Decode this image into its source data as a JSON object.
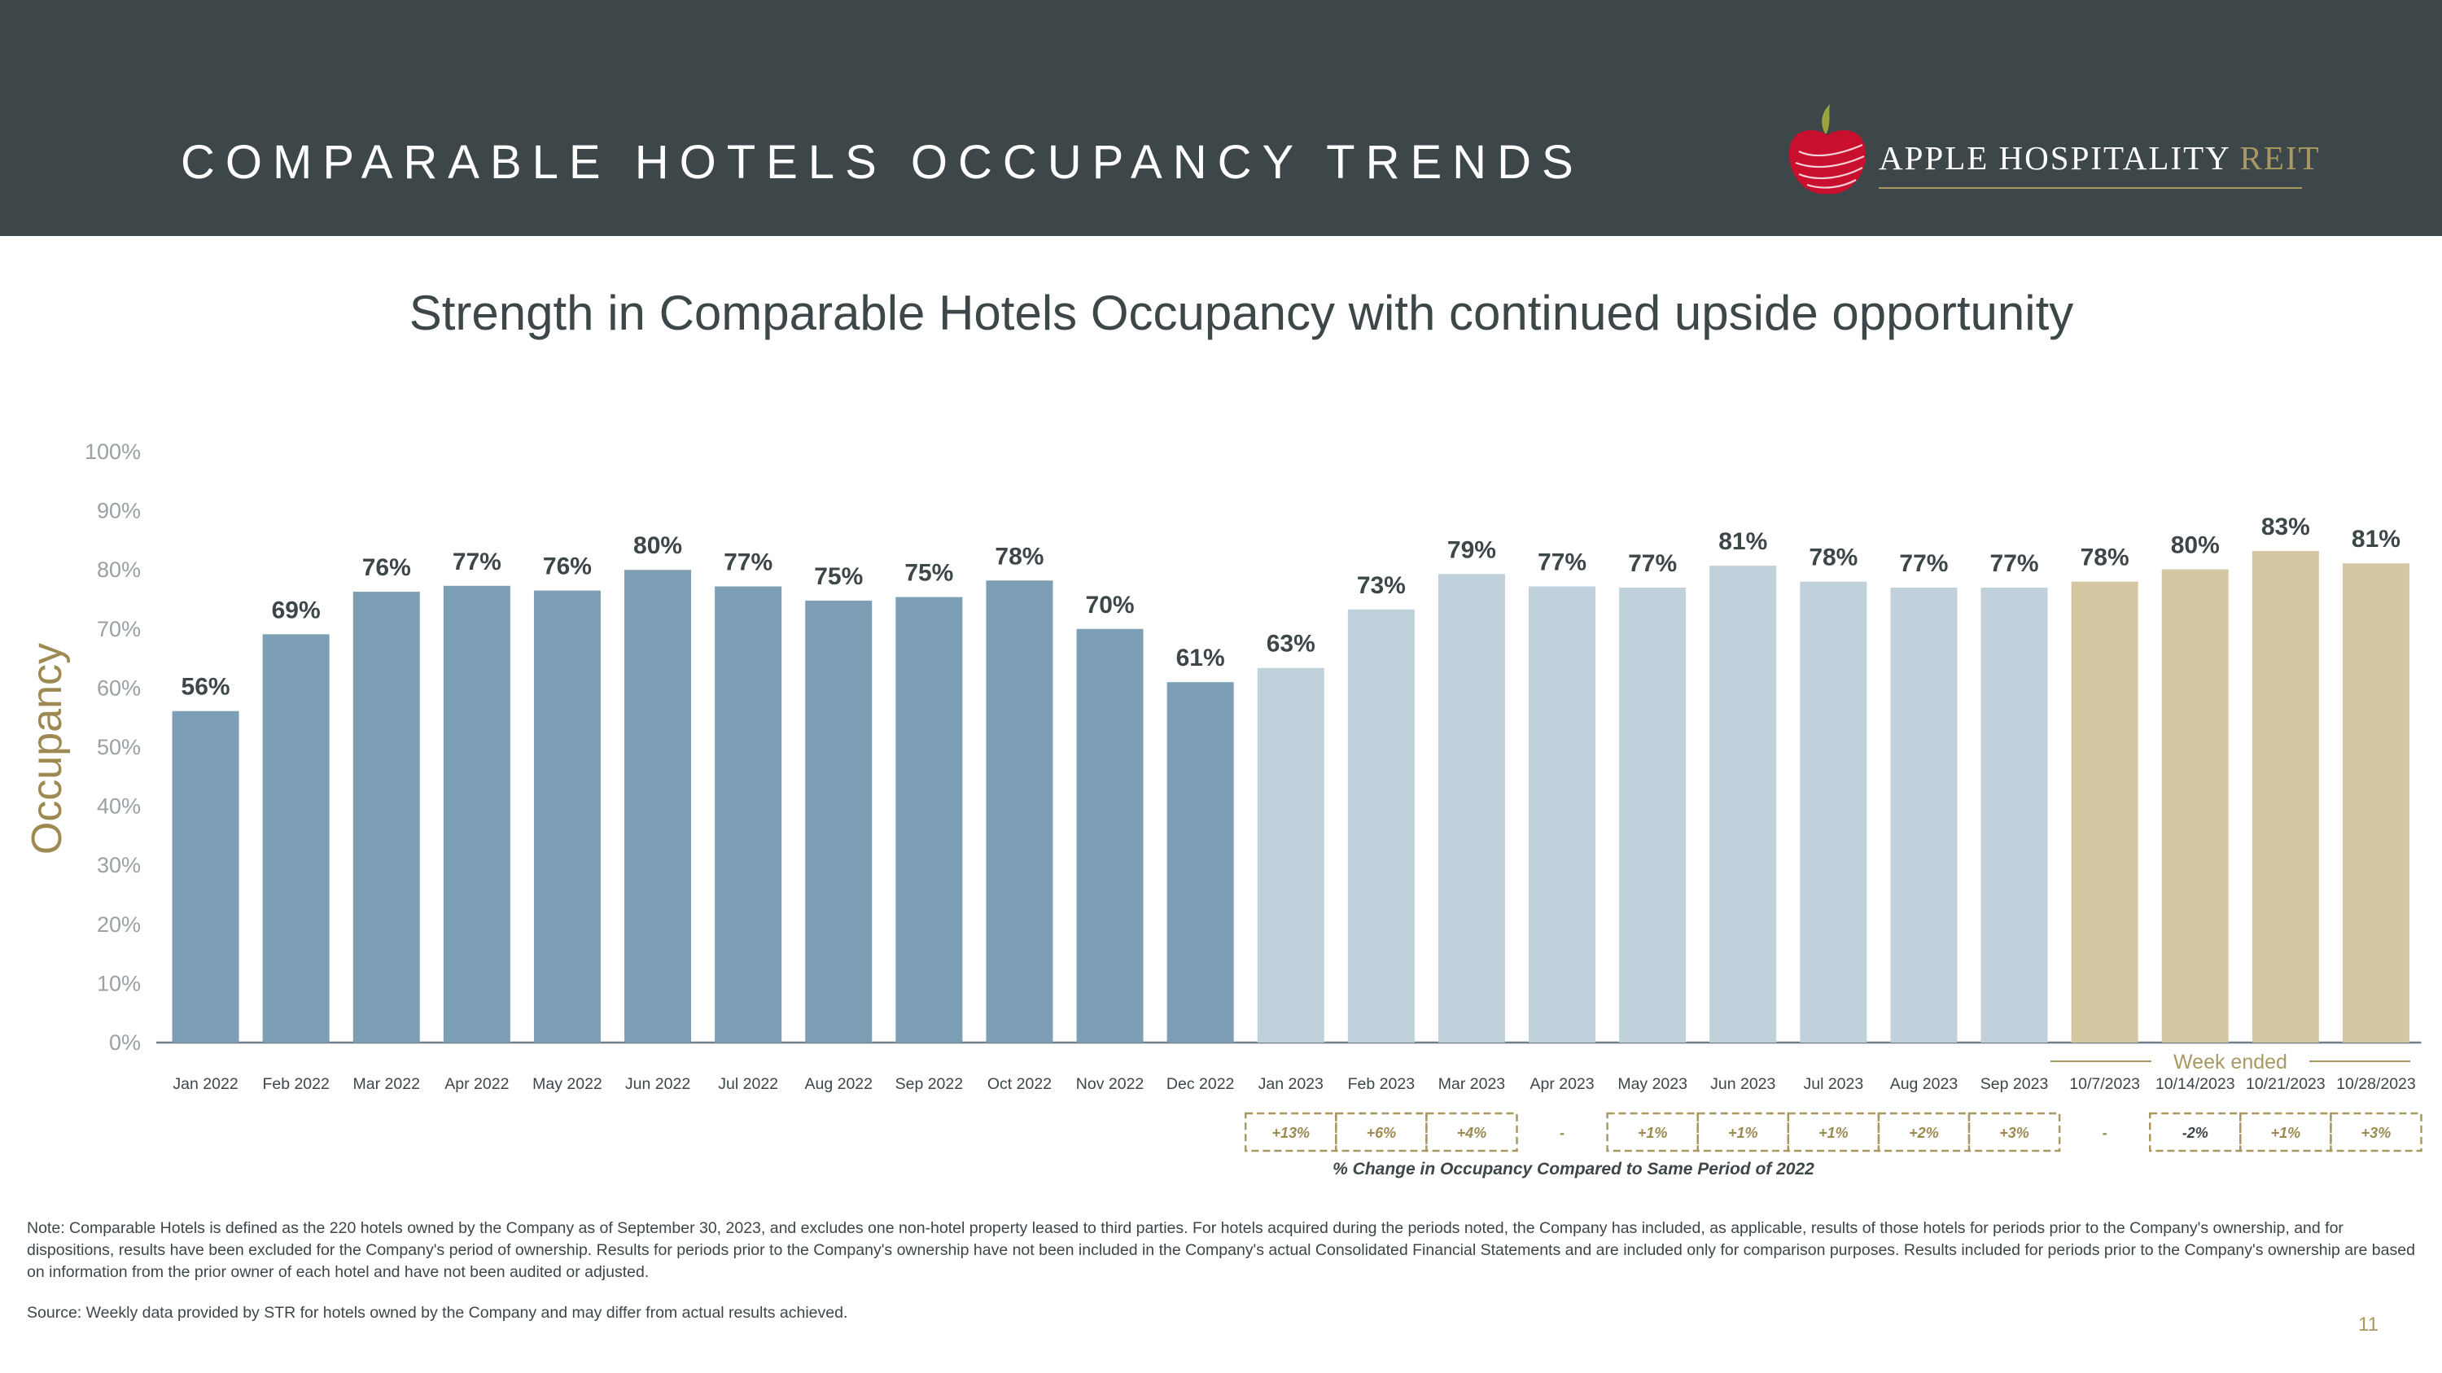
{
  "header": {
    "title": "COMPARABLE HOTELS OCCUPANCY TRENDS",
    "logo_main": "APPLE HOSPITALITY",
    "logo_accent": "REIT"
  },
  "subtitle": "Strength in Comparable Hotels Occupancy with continued upside opportunity",
  "colors": {
    "header_bg": "#3d4649",
    "bar_2022": "#7d9fb5",
    "bar_2023": "#c0d1db",
    "bar_weekly": "#d5c7a2",
    "accent_gold": "#a89963",
    "label_text": "#3d4649",
    "axis_text": "#9aa1a4"
  },
  "chart_data": {
    "type": "bar",
    "title": "Strength in Comparable Hotels Occupancy with continued upside opportunity",
    "xlabel": "",
    "ylabel": "Occupancy",
    "ylim": [
      0,
      100
    ],
    "yticks": [
      "0%",
      "10%",
      "20%",
      "30%",
      "40%",
      "50%",
      "60%",
      "70%",
      "80%",
      "90%",
      "100%"
    ],
    "grid": false,
    "categories": [
      "Jan 2022",
      "Feb 2022",
      "Mar 2022",
      "Apr 2022",
      "May 2022",
      "Jun 2022",
      "Jul 2022",
      "Aug 2022",
      "Sep 2022",
      "Oct 2022",
      "Nov 2022",
      "Dec 2022",
      "Jan 2023",
      "Feb 2023",
      "Mar 2023",
      "Apr 2023",
      "May 2023",
      "Jun 2023",
      "Jul 2023",
      "Aug 2023",
      "Sep 2023",
      "10/7/2023",
      "10/14/2023",
      "10/21/2023",
      "10/28/2023"
    ],
    "values": [
      56,
      69,
      76,
      77,
      76,
      80,
      77,
      75,
      75,
      78,
      70,
      61,
      63,
      73,
      79,
      77,
      77,
      81,
      78,
      77,
      77,
      78,
      80,
      83,
      81
    ],
    "bar_values": [
      56.1,
      69.1,
      76.3,
      77.3,
      76.5,
      80.0,
      77.2,
      74.8,
      75.4,
      78.2,
      70.0,
      61.0,
      63.4,
      73.3,
      79.3,
      77.2,
      77.0,
      80.7,
      78.0,
      77.0,
      77.0,
      78.0,
      80.1,
      83.2,
      81.1
    ],
    "labels": [
      "56%",
      "69%",
      "76%",
      "77%",
      "76%",
      "80%",
      "77%",
      "75%",
      "75%",
      "78%",
      "70%",
      "61%",
      "63%",
      "73%",
      "79%",
      "77%",
      "77%",
      "81%",
      "78%",
      "77%",
      "77%",
      "78%",
      "80%",
      "83%",
      "81%"
    ],
    "groups": [
      "2022",
      "2022",
      "2022",
      "2022",
      "2022",
      "2022",
      "2022",
      "2022",
      "2022",
      "2022",
      "2022",
      "2022",
      "2023",
      "2023",
      "2023",
      "2023",
      "2023",
      "2023",
      "2023",
      "2023",
      "2023",
      "weekly",
      "weekly",
      "weekly",
      "weekly"
    ],
    "group_annotation": "Week ended",
    "change_vs_2022": {
      "caption": "% Change in Occupancy Compared to Same Period of 2022",
      "start_index": 12,
      "values": [
        "+13%",
        "+6%",
        "+4%",
        "-",
        "+1%",
        "+1%",
        "+1%",
        "+2%",
        "+3%",
        "-",
        "-2%",
        "+1%",
        "+3%"
      ]
    }
  },
  "footer": {
    "note": "Note:  Comparable Hotels is defined as the 220 hotels owned by the Company as of September 30, 2023, and excludes one non-hotel property leased to third parties. For hotels acquired during the periods noted, the Company has included, as applicable, results of those hotels for periods prior to the Company's ownership, and for dispositions, results have been excluded for the Company's period of ownership. Results for periods prior to the Company's ownership have not been included in the Company's actual Consolidated Financial Statements and are included only for comparison purposes. Results included for periods prior to the Company's ownership are based on information from the prior owner of each hotel and have not been audited or adjusted.",
    "source": "Source:  Weekly data provided by STR for hotels owned by the Company and may differ from actual results achieved.",
    "page_number": "11"
  }
}
